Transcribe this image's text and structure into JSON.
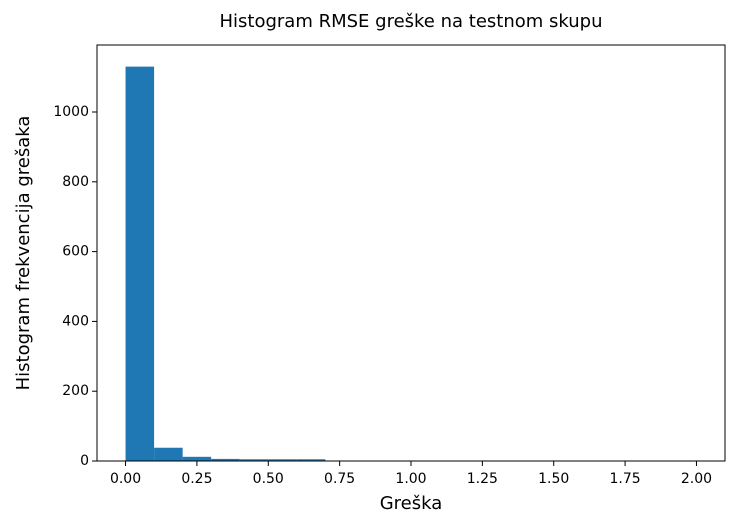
{
  "chart_data": {
    "type": "histogram",
    "title": "Histogram RMSE greške na testnom skupu",
    "xlabel": "Greška",
    "ylabel": "Histogram frekvencija grešaka",
    "bins": [
      0,
      0.1,
      0.2,
      0.3,
      0.4,
      0.5,
      0.6,
      0.7,
      0.8,
      0.9,
      1.0,
      1.1,
      1.2,
      1.3,
      1.4,
      1.5,
      1.6,
      1.7,
      1.8,
      1.9,
      2.0
    ],
    "values": [
      1130,
      38,
      12,
      6,
      5,
      5,
      5,
      1,
      1,
      1,
      0,
      0,
      0,
      0,
      0,
      0,
      0,
      0,
      0,
      1
    ],
    "color": "#1f77b4",
    "xlim": [
      -0.1,
      2.1
    ],
    "ylim": [
      0,
      1192
    ],
    "xticks": [
      {
        "value": 0,
        "label": "0.00"
      },
      {
        "value": 0.25,
        "label": "0.25"
      },
      {
        "value": 0.5,
        "label": "0.50"
      },
      {
        "value": 0.75,
        "label": "0.75"
      },
      {
        "value": 1.0,
        "label": "1.00"
      },
      {
        "value": 1.25,
        "label": "1.25"
      },
      {
        "value": 1.5,
        "label": "1.50"
      },
      {
        "value": 1.75,
        "label": "1.75"
      },
      {
        "value": 2.0,
        "label": "2.00"
      }
    ],
    "yticks": [
      0,
      200,
      400,
      600,
      800,
      1000
    ],
    "grid": false
  }
}
